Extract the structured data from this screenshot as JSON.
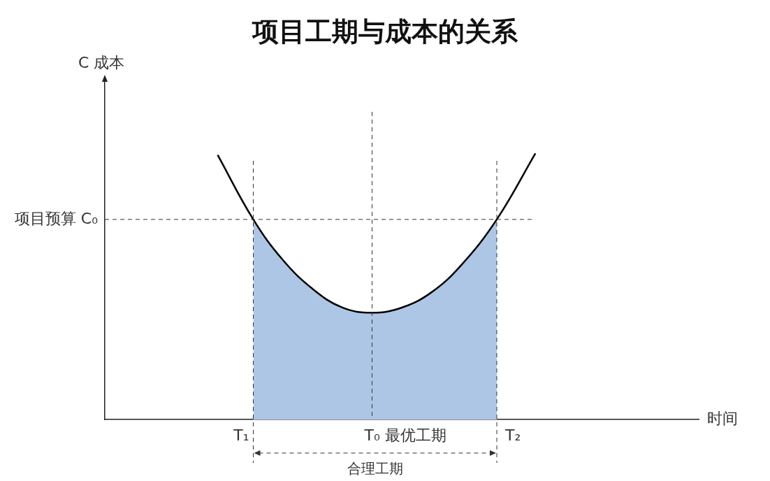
{
  "chart_data": {
    "type": "line",
    "title": "项目工期与成本的关系",
    "y_label": "C 成本",
    "x_label": "时间",
    "x": [
      1.9,
      2.5,
      3.0,
      3.5,
      4.0,
      4.5,
      5.0,
      5.5,
      6.0,
      6.6,
      7.25
    ],
    "values": [
      7.8,
      5.9,
      4.7,
      3.85,
      3.3,
      3.15,
      3.3,
      3.75,
      4.55,
      5.9,
      7.85
    ],
    "color": "#000000",
    "xlim": [
      0,
      10
    ],
    "ylim": [
      0,
      10
    ],
    "tick_labels": false,
    "grid": false,
    "annotations": {
      "vlines": [
        {
          "x": 2.5,
          "label": "T₁"
        },
        {
          "x": 4.5,
          "label": "T₀ 最优工期"
        },
        {
          "x": 6.6,
          "label": "T₂"
        }
      ],
      "hline": {
        "y": 5.9,
        "label": "项目预算 C₀"
      },
      "range": {
        "from": 2.5,
        "to": 6.6,
        "label": "合理工期"
      }
    }
  }
}
